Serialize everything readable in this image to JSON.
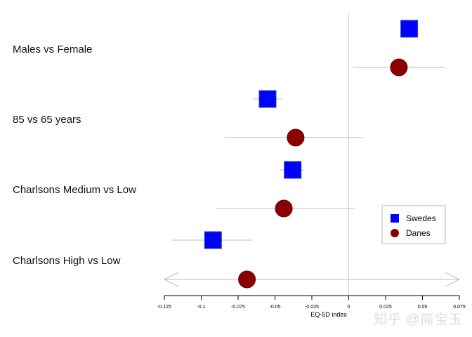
{
  "chart_data": {
    "type": "forest",
    "xlabel": "EQ-5D index",
    "xlim": [
      -0.125,
      0.075
    ],
    "xticks": [
      "-0.125",
      "-0.1",
      "-0.075",
      "-0.05",
      "-0.025",
      "0",
      "0.025",
      "0.05",
      "0.075"
    ],
    "reference_line": 0,
    "grid": false,
    "legend_position": "bottom-right",
    "categories": [
      "Males vs Female",
      "85 vs 65 years",
      "Charlsons Medium vs Low",
      "Charlsons High vs Low"
    ],
    "series": [
      {
        "name": "Swedes",
        "marker": "square",
        "color": "#0000ff",
        "values": [
          0.041,
          -0.055,
          -0.038,
          -0.092
        ],
        "ci_low": [
          0.039,
          -0.065,
          -0.047,
          -0.12
        ],
        "ci_high": [
          0.043,
          -0.045,
          -0.03,
          -0.065
        ]
      },
      {
        "name": "Danes",
        "marker": "circle",
        "color": "#8b0000",
        "values": [
          0.034,
          -0.036,
          -0.044,
          -0.069
        ],
        "ci_low": [
          0.003,
          -0.084,
          -0.09,
          -0.125
        ],
        "ci_high": [
          0.065,
          0.01,
          0.004,
          0.075
        ],
        "ci_beyond_axis": [
          false,
          false,
          false,
          true
        ]
      }
    ]
  },
  "watermark": "知乎 @简宝玉"
}
